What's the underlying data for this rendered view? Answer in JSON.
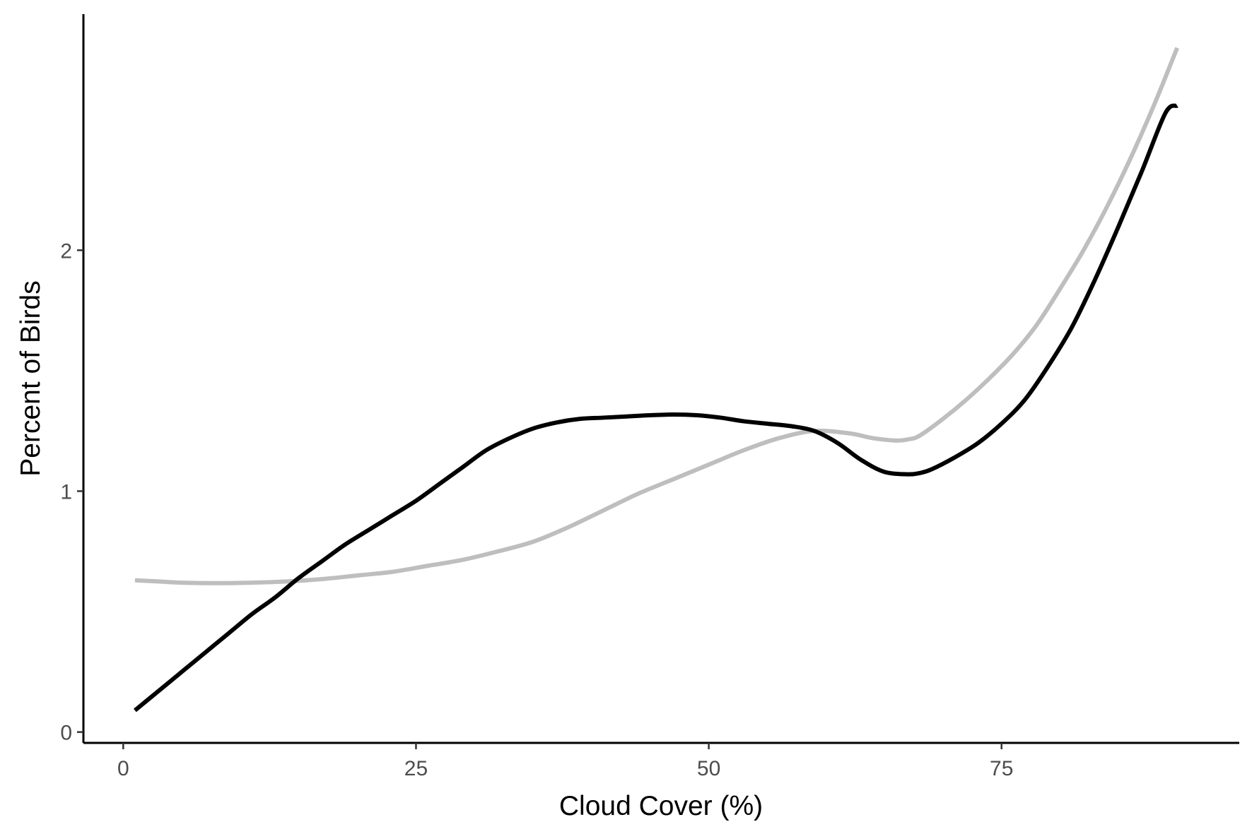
{
  "chart_data": {
    "type": "line",
    "title": "",
    "xlabel": "Cloud Cover (%)",
    "ylabel": "Percent of Birds",
    "xlim": [
      -3.4,
      95.3
    ],
    "ylim": [
      -0.045,
      2.98
    ],
    "x_ticks": [
      0,
      25,
      50,
      75
    ],
    "x_tick_labels": [
      "0",
      "25",
      "50",
      "75"
    ],
    "y_ticks": [
      0,
      1,
      2
    ],
    "y_tick_labels": [
      "0",
      "1",
      "2"
    ],
    "grid": false,
    "legend": "none",
    "series": [
      {
        "color": "#bebebe",
        "width": 6,
        "x": [
          1,
          3,
          5,
          8,
          11,
          14,
          17,
          20,
          23,
          26,
          29,
          32,
          35,
          38,
          41,
          44,
          47,
          50,
          53,
          56,
          59,
          62,
          64,
          66,
          67,
          68,
          70,
          72,
          74,
          76,
          78,
          80,
          82,
          84,
          86,
          88,
          90
        ],
        "y": [
          0.63,
          0.625,
          0.62,
          0.618,
          0.62,
          0.625,
          0.635,
          0.65,
          0.665,
          0.69,
          0.715,
          0.75,
          0.79,
          0.85,
          0.92,
          0.99,
          1.05,
          1.11,
          1.17,
          1.22,
          1.25,
          1.24,
          1.22,
          1.21,
          1.215,
          1.23,
          1.3,
          1.38,
          1.47,
          1.57,
          1.69,
          1.84,
          2.0,
          2.18,
          2.38,
          2.6,
          2.84
        ]
      },
      {
        "color": "#000000",
        "width": 6,
        "x": [
          1,
          3,
          5,
          7,
          9,
          11,
          13,
          15,
          17,
          19,
          21,
          23,
          25,
          27,
          29,
          31,
          33,
          35,
          37,
          39,
          41,
          43,
          45,
          47,
          49,
          51,
          53,
          55,
          57,
          59,
          61,
          63,
          65,
          67,
          68,
          69,
          71,
          73,
          75,
          77,
          79,
          81,
          83,
          85,
          87,
          89,
          90
        ],
        "y": [
          0.09,
          0.17,
          0.25,
          0.33,
          0.41,
          0.49,
          0.56,
          0.64,
          0.71,
          0.78,
          0.84,
          0.9,
          0.96,
          1.03,
          1.1,
          1.17,
          1.22,
          1.26,
          1.285,
          1.3,
          1.305,
          1.31,
          1.315,
          1.318,
          1.315,
          1.305,
          1.29,
          1.28,
          1.27,
          1.25,
          1.2,
          1.13,
          1.08,
          1.07,
          1.075,
          1.09,
          1.14,
          1.2,
          1.28,
          1.38,
          1.52,
          1.68,
          1.88,
          2.1,
          2.33,
          2.57,
          2.6
        ]
      }
    ]
  }
}
